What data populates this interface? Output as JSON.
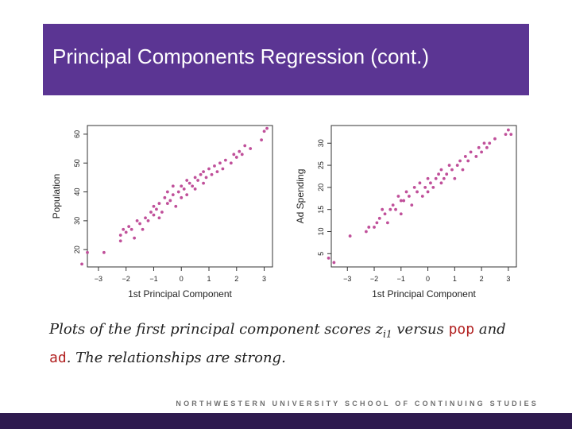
{
  "slide": {
    "title": "Principal Components Regression (cont.)",
    "footer": "NORTHWESTERN UNIVERSITY SCHOOL OF CONTINUING STUDIES",
    "caption": {
      "part1": "Plots of the first principal component scores ",
      "var": "z",
      "sub": "i1",
      "part2": " versus ",
      "code1": "pop",
      "part3": " and ",
      "code2": "ad",
      "part4": ".  The relationships are strong."
    }
  },
  "colors": {
    "header": "#5b3593",
    "footer_bar": "#2e1a4f",
    "points": "#c0509a",
    "code": "#b22222"
  },
  "chart_data": [
    {
      "type": "scatter",
      "xlabel": "1st Principal Component",
      "ylabel": "Population",
      "xlim": [
        -3.4,
        3.3
      ],
      "ylim": [
        14,
        63
      ],
      "xticks": [
        -3,
        -2,
        -1,
        0,
        1,
        2,
        3
      ],
      "yticks": [
        20,
        30,
        40,
        50,
        60
      ],
      "points": [
        [
          -3.6,
          15
        ],
        [
          -3.4,
          19
        ],
        [
          -2.8,
          19
        ],
        [
          -2.2,
          23
        ],
        [
          -2.2,
          25
        ],
        [
          -2.1,
          27
        ],
        [
          -2.0,
          26
        ],
        [
          -1.9,
          28
        ],
        [
          -1.8,
          27
        ],
        [
          -1.7,
          24
        ],
        [
          -1.6,
          30
        ],
        [
          -1.5,
          29
        ],
        [
          -1.4,
          27
        ],
        [
          -1.3,
          31
        ],
        [
          -1.2,
          30
        ],
        [
          -1.1,
          33
        ],
        [
          -1.0,
          32
        ],
        [
          -1.0,
          35
        ],
        [
          -0.9,
          34
        ],
        [
          -0.8,
          36
        ],
        [
          -0.8,
          31
        ],
        [
          -0.7,
          33
        ],
        [
          -0.6,
          38
        ],
        [
          -0.5,
          36
        ],
        [
          -0.5,
          40
        ],
        [
          -0.4,
          37
        ],
        [
          -0.3,
          39
        ],
        [
          -0.3,
          42
        ],
        [
          -0.2,
          35
        ],
        [
          -0.1,
          40
        ],
        [
          0.0,
          38
        ],
        [
          0.0,
          42
        ],
        [
          0.1,
          41
        ],
        [
          0.2,
          39
        ],
        [
          0.2,
          44
        ],
        [
          0.3,
          43
        ],
        [
          0.4,
          42
        ],
        [
          0.5,
          45
        ],
        [
          0.5,
          41
        ],
        [
          0.6,
          44
        ],
        [
          0.7,
          46
        ],
        [
          0.8,
          43
        ],
        [
          0.8,
          47
        ],
        [
          0.9,
          45
        ],
        [
          1.0,
          48
        ],
        [
          1.1,
          46
        ],
        [
          1.2,
          49
        ],
        [
          1.3,
          47
        ],
        [
          1.4,
          50
        ],
        [
          1.5,
          48
        ],
        [
          1.6,
          51
        ],
        [
          1.8,
          50
        ],
        [
          1.9,
          53
        ],
        [
          2.0,
          52
        ],
        [
          2.1,
          54
        ],
        [
          2.2,
          53
        ],
        [
          2.3,
          56
        ],
        [
          2.5,
          55
        ],
        [
          2.9,
          58
        ],
        [
          3.0,
          61
        ],
        [
          3.1,
          62
        ]
      ]
    },
    {
      "type": "scatter",
      "xlabel": "1st Principal Component",
      "ylabel": "Ad Spending",
      "xlim": [
        -3.6,
        3.3
      ],
      "ylim": [
        2,
        34
      ],
      "xticks": [
        -3,
        -2,
        -1,
        0,
        1,
        2,
        3
      ],
      "yticks": [
        5,
        10,
        15,
        20,
        25,
        30
      ],
      "points": [
        [
          -3.7,
          4
        ],
        [
          -3.5,
          3
        ],
        [
          -2.9,
          9
        ],
        [
          -2.3,
          10
        ],
        [
          -2.2,
          11
        ],
        [
          -2.0,
          11
        ],
        [
          -1.9,
          12
        ],
        [
          -1.8,
          13
        ],
        [
          -1.7,
          15
        ],
        [
          -1.6,
          14
        ],
        [
          -1.5,
          12
        ],
        [
          -1.4,
          15
        ],
        [
          -1.3,
          16
        ],
        [
          -1.2,
          15
        ],
        [
          -1.1,
          18
        ],
        [
          -1.0,
          17
        ],
        [
          -1.0,
          14
        ],
        [
          -0.9,
          17
        ],
        [
          -0.8,
          19
        ],
        [
          -0.7,
          18
        ],
        [
          -0.6,
          16
        ],
        [
          -0.5,
          20
        ],
        [
          -0.4,
          19
        ],
        [
          -0.3,
          21
        ],
        [
          -0.2,
          18
        ],
        [
          -0.1,
          20
        ],
        [
          0.0,
          19
        ],
        [
          0.0,
          22
        ],
        [
          0.1,
          21
        ],
        [
          0.2,
          20
        ],
        [
          0.3,
          22
        ],
        [
          0.4,
          23
        ],
        [
          0.5,
          21
        ],
        [
          0.5,
          24
        ],
        [
          0.6,
          22
        ],
        [
          0.7,
          23
        ],
        [
          0.8,
          25
        ],
        [
          0.9,
          24
        ],
        [
          1.0,
          22
        ],
        [
          1.1,
          25
        ],
        [
          1.2,
          26
        ],
        [
          1.3,
          24
        ],
        [
          1.4,
          27
        ],
        [
          1.5,
          26
        ],
        [
          1.6,
          28
        ],
        [
          1.8,
          27
        ],
        [
          1.9,
          29
        ],
        [
          2.0,
          28
        ],
        [
          2.1,
          30
        ],
        [
          2.2,
          29
        ],
        [
          2.3,
          30
        ],
        [
          2.5,
          31
        ],
        [
          2.9,
          32
        ],
        [
          3.0,
          33
        ],
        [
          3.1,
          32
        ]
      ]
    }
  ]
}
